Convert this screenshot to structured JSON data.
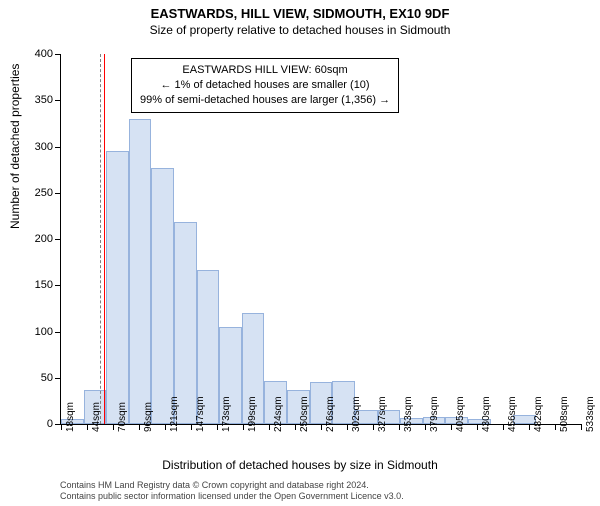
{
  "chart": {
    "type": "histogram",
    "title": "EASTWARDS, HILL VIEW, SIDMOUTH, EX10 9DF",
    "subtitle": "Size of property relative to detached houses in Sidmouth",
    "x_axis_label": "Distribution of detached houses by size in Sidmouth",
    "y_axis_label": "Number of detached properties",
    "ylim": [
      0,
      400
    ],
    "y_ticks": [
      0,
      50,
      100,
      150,
      200,
      250,
      300,
      350,
      400
    ],
    "x_tick_labels": [
      "18sqm",
      "44sqm",
      "70sqm",
      "96sqm",
      "121sqm",
      "147sqm",
      "173sqm",
      "199sqm",
      "224sqm",
      "250sqm",
      "276sqm",
      "302sqm",
      "327sqm",
      "353sqm",
      "379sqm",
      "405sqm",
      "430sqm",
      "456sqm",
      "482sqm",
      "508sqm",
      "533sqm"
    ],
    "bars": [
      5,
      37,
      295,
      330,
      277,
      218,
      167,
      105,
      120,
      47,
      37,
      45,
      47,
      15,
      15,
      7,
      8,
      8,
      5,
      0,
      10,
      0,
      0
    ],
    "bar_fill": "#d6e2f3",
    "bar_border": "#97b3dd",
    "background_color": "#ffffff",
    "marker_line": {
      "color": "#ff0000",
      "position_index": 1.65,
      "style": "solid"
    },
    "divider_line": {
      "color": "#808080",
      "position_index": 1.5,
      "style": "dashed"
    },
    "callout": {
      "line1": "EASTWARDS HILL VIEW: 60sqm",
      "line2": "← 1% of detached houses are smaller (10)",
      "line3": "99% of semi-detached houses are larger (1,356) →"
    },
    "footer_line1": "Contains HM Land Registry data © Crown copyright and database right 2024.",
    "footer_line2": "Contains public sector information licensed under the Open Government Licence v3.0."
  }
}
